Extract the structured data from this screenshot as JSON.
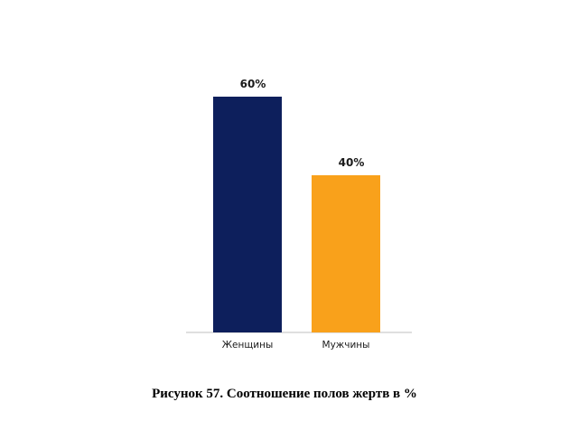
{
  "chart_data": {
    "type": "bar",
    "categories": [
      "Женщины",
      "Мужчины"
    ],
    "values": [
      60,
      40
    ],
    "data_labels": [
      "60%",
      "40%"
    ],
    "colors": [
      "#0d1f5c",
      "#f9a11b"
    ],
    "ylim": [
      0,
      60
    ],
    "grid": false,
    "legend": "none"
  },
  "caption": "Рисунок 57. Соотношение полов жертв в %"
}
